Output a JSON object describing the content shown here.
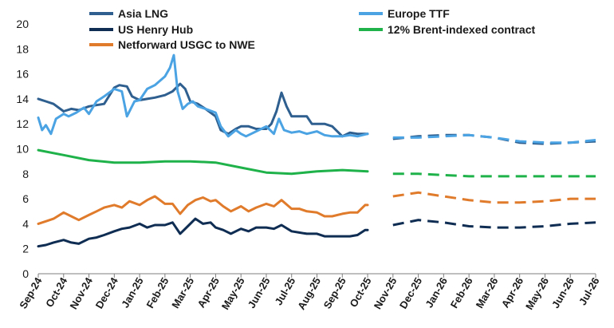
{
  "chart_data": {
    "type": "line",
    "title": "",
    "xlabel": "",
    "ylabel": "",
    "ylim": [
      0,
      20
    ],
    "yticks": [
      "0",
      "2",
      "4",
      "6",
      "8",
      "10",
      "12",
      "14",
      "16",
      "18",
      "20"
    ],
    "x_categories": [
      "Sep-24",
      "Oct-24",
      "Nov-24",
      "Dec-24",
      "Jan-25",
      "Feb-25",
      "Mar-25",
      "Apr-25",
      "May-25",
      "Jun-25",
      "Jul-25",
      "Aug-25",
      "Sep-25",
      "Oct-25",
      "Nov-25",
      "Dec-25",
      "Jan-26",
      "Feb-26",
      "Mar-26",
      "Apr-26",
      "May-26",
      "Jun-26",
      "Jul-26"
    ],
    "legend": [
      {
        "name": "Asia LNG",
        "color": "#2e5f8f"
      },
      {
        "name": "Europe TTF",
        "color": "#4ba3e3"
      },
      {
        "name": "US Henry Hub",
        "color": "#0f2d52"
      },
      {
        "name": "12% Brent-indexed contract",
        "color": "#1fb24a"
      },
      {
        "name": "Netforward USGC to NWE",
        "color": "#e07b2c"
      }
    ],
    "series": [
      {
        "name": "Asia LNG",
        "color": "#2e5f8f",
        "historical": [
          [
            0.0,
            14.0
          ],
          [
            0.3,
            13.8
          ],
          [
            0.6,
            13.6
          ],
          [
            1.0,
            13.0
          ],
          [
            1.3,
            13.2
          ],
          [
            1.6,
            13.1
          ],
          [
            2.0,
            13.4
          ],
          [
            2.3,
            13.5
          ],
          [
            2.6,
            13.6
          ],
          [
            3.0,
            14.9
          ],
          [
            3.2,
            15.1
          ],
          [
            3.5,
            15.0
          ],
          [
            3.7,
            14.2
          ],
          [
            4.0,
            13.9
          ],
          [
            4.3,
            14.0
          ],
          [
            4.6,
            14.1
          ],
          [
            5.0,
            14.3
          ],
          [
            5.3,
            14.6
          ],
          [
            5.6,
            15.2
          ],
          [
            5.8,
            14.8
          ],
          [
            6.0,
            13.8
          ],
          [
            6.3,
            13.6
          ],
          [
            6.6,
            13.2
          ],
          [
            7.0,
            12.6
          ],
          [
            7.2,
            11.5
          ],
          [
            7.5,
            11.2
          ],
          [
            7.8,
            11.6
          ],
          [
            8.0,
            11.8
          ],
          [
            8.3,
            11.8
          ],
          [
            8.6,
            11.6
          ],
          [
            9.0,
            11.6
          ],
          [
            9.2,
            12.0
          ],
          [
            9.4,
            13.0
          ],
          [
            9.6,
            14.5
          ],
          [
            9.8,
            13.4
          ],
          [
            10.0,
            12.6
          ],
          [
            10.3,
            12.6
          ],
          [
            10.6,
            12.6
          ],
          [
            10.8,
            12.0
          ],
          [
            11.0,
            12.0
          ],
          [
            11.3,
            12.0
          ],
          [
            11.6,
            11.8
          ],
          [
            12.0,
            11.0
          ],
          [
            12.3,
            11.3
          ],
          [
            12.6,
            11.2
          ],
          [
            13.0,
            11.2
          ]
        ],
        "forecast": [
          [
            14.0,
            10.8
          ],
          [
            15.0,
            11.0
          ],
          [
            16.0,
            11.1
          ],
          [
            17.0,
            11.1
          ],
          [
            18.0,
            10.9
          ],
          [
            19.0,
            10.5
          ],
          [
            20.0,
            10.4
          ],
          [
            21.0,
            10.5
          ],
          [
            22.0,
            10.6
          ]
        ]
      },
      {
        "name": "Europe TTF",
        "color": "#4ba3e3",
        "historical": [
          [
            0.0,
            12.5
          ],
          [
            0.15,
            11.5
          ],
          [
            0.3,
            11.9
          ],
          [
            0.5,
            11.2
          ],
          [
            0.7,
            12.4
          ],
          [
            1.0,
            12.8
          ],
          [
            1.2,
            12.6
          ],
          [
            1.5,
            12.9
          ],
          [
            1.8,
            13.3
          ],
          [
            2.0,
            12.8
          ],
          [
            2.3,
            13.8
          ],
          [
            2.6,
            14.2
          ],
          [
            3.0,
            14.8
          ],
          [
            3.3,
            14.6
          ],
          [
            3.5,
            12.6
          ],
          [
            3.8,
            13.8
          ],
          [
            4.0,
            13.9
          ],
          [
            4.3,
            14.8
          ],
          [
            4.6,
            15.1
          ],
          [
            5.0,
            15.8
          ],
          [
            5.2,
            16.5
          ],
          [
            5.35,
            17.5
          ],
          [
            5.5,
            14.6
          ],
          [
            5.7,
            13.2
          ],
          [
            5.9,
            13.6
          ],
          [
            6.1,
            13.8
          ],
          [
            6.3,
            13.4
          ],
          [
            6.6,
            13.2
          ],
          [
            7.0,
            12.9
          ],
          [
            7.2,
            11.8
          ],
          [
            7.5,
            11.0
          ],
          [
            7.8,
            11.5
          ],
          [
            8.0,
            11.2
          ],
          [
            8.2,
            11.0
          ],
          [
            8.5,
            11.3
          ],
          [
            8.8,
            11.6
          ],
          [
            9.0,
            11.8
          ],
          [
            9.3,
            11.2
          ],
          [
            9.5,
            12.4
          ],
          [
            9.7,
            11.5
          ],
          [
            10.0,
            11.3
          ],
          [
            10.3,
            11.4
          ],
          [
            10.6,
            11.2
          ],
          [
            11.0,
            11.4
          ],
          [
            11.3,
            11.1
          ],
          [
            11.6,
            11.0
          ],
          [
            12.0,
            11.0
          ],
          [
            12.3,
            11.1
          ],
          [
            12.6,
            11.0
          ],
          [
            13.0,
            11.2
          ]
        ],
        "forecast": [
          [
            14.0,
            10.9
          ],
          [
            15.0,
            10.9
          ],
          [
            16.0,
            11.0
          ],
          [
            17.0,
            11.1
          ],
          [
            18.0,
            10.9
          ],
          [
            19.0,
            10.6
          ],
          [
            20.0,
            10.5
          ],
          [
            21.0,
            10.5
          ],
          [
            22.0,
            10.7
          ]
        ]
      },
      {
        "name": "US Henry Hub",
        "color": "#0f2d52",
        "historical": [
          [
            0.0,
            2.2
          ],
          [
            0.3,
            2.3
          ],
          [
            0.6,
            2.5
          ],
          [
            1.0,
            2.7
          ],
          [
            1.3,
            2.5
          ],
          [
            1.6,
            2.4
          ],
          [
            2.0,
            2.8
          ],
          [
            2.3,
            2.9
          ],
          [
            2.6,
            3.1
          ],
          [
            3.0,
            3.4
          ],
          [
            3.3,
            3.6
          ],
          [
            3.6,
            3.7
          ],
          [
            4.0,
            4.0
          ],
          [
            4.3,
            3.7
          ],
          [
            4.6,
            3.9
          ],
          [
            5.0,
            3.9
          ],
          [
            5.3,
            4.1
          ],
          [
            5.6,
            3.2
          ],
          [
            5.9,
            3.8
          ],
          [
            6.2,
            4.4
          ],
          [
            6.5,
            4.0
          ],
          [
            6.8,
            4.1
          ],
          [
            7.0,
            3.7
          ],
          [
            7.3,
            3.5
          ],
          [
            7.6,
            3.2
          ],
          [
            8.0,
            3.6
          ],
          [
            8.3,
            3.4
          ],
          [
            8.6,
            3.7
          ],
          [
            9.0,
            3.7
          ],
          [
            9.3,
            3.6
          ],
          [
            9.6,
            3.9
          ],
          [
            10.0,
            3.4
          ],
          [
            10.3,
            3.3
          ],
          [
            10.6,
            3.2
          ],
          [
            11.0,
            3.2
          ],
          [
            11.3,
            3.0
          ],
          [
            11.6,
            3.0
          ],
          [
            12.0,
            3.0
          ],
          [
            12.3,
            3.0
          ],
          [
            12.6,
            3.1
          ],
          [
            12.9,
            3.5
          ],
          [
            13.0,
            3.5
          ]
        ],
        "forecast": [
          [
            14.0,
            3.9
          ],
          [
            15.0,
            4.3
          ],
          [
            16.0,
            4.1
          ],
          [
            17.0,
            3.8
          ],
          [
            18.0,
            3.7
          ],
          [
            19.0,
            3.7
          ],
          [
            20.0,
            3.8
          ],
          [
            21.0,
            4.0
          ],
          [
            22.0,
            4.1
          ]
        ]
      },
      {
        "name": "12% Brent-indexed contract",
        "color": "#1fb24a",
        "historical": [
          [
            0.0,
            9.9
          ],
          [
            1.0,
            9.5
          ],
          [
            2.0,
            9.1
          ],
          [
            3.0,
            8.9
          ],
          [
            4.0,
            8.9
          ],
          [
            5.0,
            9.0
          ],
          [
            6.0,
            9.0
          ],
          [
            7.0,
            8.9
          ],
          [
            8.0,
            8.5
          ],
          [
            9.0,
            8.1
          ],
          [
            10.0,
            8.0
          ],
          [
            11.0,
            8.2
          ],
          [
            12.0,
            8.3
          ],
          [
            13.0,
            8.2
          ]
        ],
        "forecast": [
          [
            14.0,
            8.0
          ],
          [
            15.0,
            8.0
          ],
          [
            16.0,
            7.9
          ],
          [
            17.0,
            7.8
          ],
          [
            18.0,
            7.8
          ],
          [
            19.0,
            7.8
          ],
          [
            20.0,
            7.8
          ],
          [
            21.0,
            7.8
          ],
          [
            22.0,
            7.8
          ]
        ]
      },
      {
        "name": "Netforward USGC to NWE",
        "color": "#e07b2c",
        "historical": [
          [
            0.0,
            4.0
          ],
          [
            0.3,
            4.2
          ],
          [
            0.6,
            4.4
          ],
          [
            1.0,
            4.9
          ],
          [
            1.3,
            4.6
          ],
          [
            1.6,
            4.3
          ],
          [
            2.0,
            4.7
          ],
          [
            2.3,
            5.0
          ],
          [
            2.6,
            5.3
          ],
          [
            3.0,
            5.5
          ],
          [
            3.3,
            5.3
          ],
          [
            3.6,
            5.8
          ],
          [
            4.0,
            5.5
          ],
          [
            4.3,
            5.9
          ],
          [
            4.6,
            6.2
          ],
          [
            5.0,
            5.6
          ],
          [
            5.3,
            5.6
          ],
          [
            5.6,
            4.8
          ],
          [
            5.9,
            5.5
          ],
          [
            6.2,
            5.9
          ],
          [
            6.5,
            6.1
          ],
          [
            6.8,
            5.8
          ],
          [
            7.0,
            5.9
          ],
          [
            7.3,
            5.4
          ],
          [
            7.6,
            5.0
          ],
          [
            8.0,
            5.4
          ],
          [
            8.3,
            5.0
          ],
          [
            8.6,
            5.3
          ],
          [
            9.0,
            5.6
          ],
          [
            9.3,
            5.4
          ],
          [
            9.6,
            5.9
          ],
          [
            10.0,
            5.2
          ],
          [
            10.3,
            5.2
          ],
          [
            10.6,
            5.0
          ],
          [
            11.0,
            4.9
          ],
          [
            11.3,
            4.6
          ],
          [
            11.6,
            4.6
          ],
          [
            12.0,
            4.8
          ],
          [
            12.3,
            4.9
          ],
          [
            12.6,
            4.9
          ],
          [
            12.9,
            5.5
          ],
          [
            13.0,
            5.5
          ]
        ],
        "forecast": [
          [
            14.0,
            6.2
          ],
          [
            15.0,
            6.5
          ],
          [
            16.0,
            6.2
          ],
          [
            17.0,
            5.9
          ],
          [
            18.0,
            5.7
          ],
          [
            19.0,
            5.7
          ],
          [
            20.0,
            5.8
          ],
          [
            21.0,
            6.0
          ],
          [
            22.0,
            6.0
          ]
        ]
      }
    ]
  }
}
